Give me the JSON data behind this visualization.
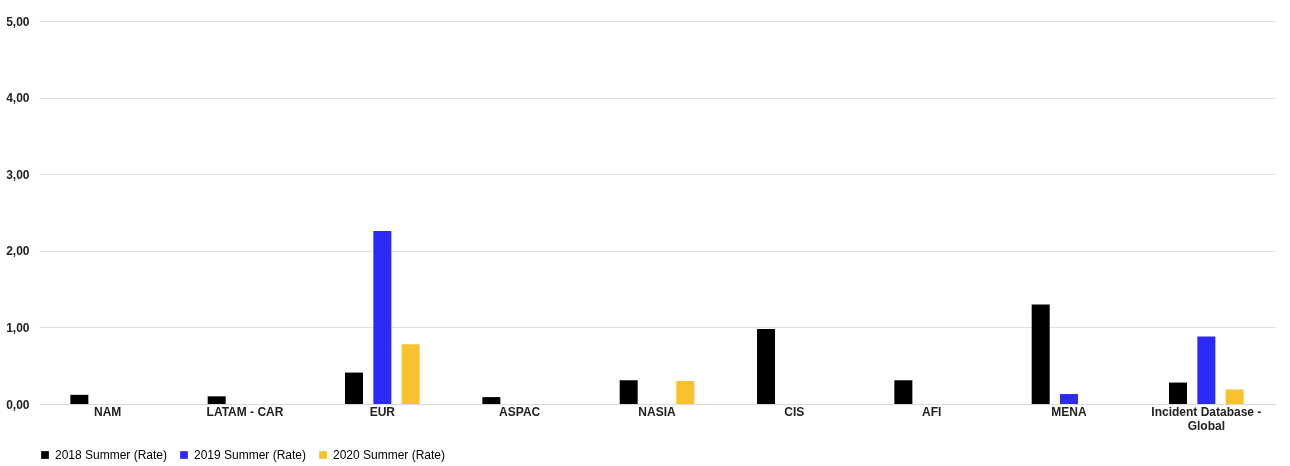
{
  "chart_data": {
    "type": "bar",
    "categories": [
      "NAM",
      "LATAM - CAR",
      "EUR",
      "ASPAC",
      "NASIA",
      "CIS",
      "AFI",
      "MENA",
      "Incident Database - Global"
    ],
    "series": [
      {
        "name": "2018 Summer (Rate)",
        "color": "#000000",
        "values": [
          0.12,
          0.1,
          0.41,
          0.09,
          0.31,
          0.98,
          0.31,
          1.3,
          0.28
        ]
      },
      {
        "name": "2019 Summer (Rate)",
        "color": "#2b2bf5",
        "values": [
          null,
          null,
          2.26,
          null,
          null,
          null,
          null,
          0.13,
          0.88
        ]
      },
      {
        "name": "2020 Summer (Rate)",
        "color": "#f8c22e",
        "values": [
          null,
          null,
          0.78,
          null,
          0.3,
          null,
          null,
          null,
          0.19
        ]
      }
    ],
    "ylim": [
      0,
      5
    ],
    "yticks": [
      {
        "value": 0,
        "label": "0,00"
      },
      {
        "value": 1,
        "label": "1,00"
      },
      {
        "value": 2,
        "label": "2,00"
      },
      {
        "value": 3,
        "label": "3,00"
      },
      {
        "value": 4,
        "label": "4,00"
      },
      {
        "value": 5,
        "label": "5,00"
      }
    ],
    "grid": "y",
    "legend": "bottom"
  }
}
